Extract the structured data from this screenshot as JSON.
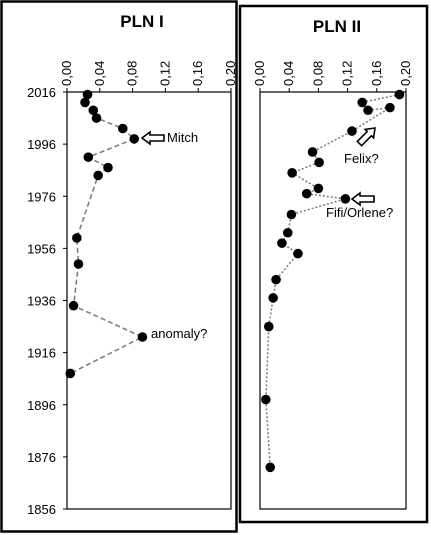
{
  "chart_data": [
    {
      "type": "scatter",
      "title": "PLN I",
      "x_ticks": [
        "0,00",
        "0,04",
        "0,08",
        "0,12",
        "0,16",
        "0,20"
      ],
      "y_ticks": [
        "2016",
        "1996",
        "1976",
        "1956",
        "1936",
        "1916",
        "1896",
        "1876",
        "1856"
      ],
      "xlim": [
        0,
        0.2
      ],
      "ylim": [
        1856,
        2016
      ],
      "x_axis_position": "top",
      "line_style": "dashed",
      "series": [
        {
          "values": [
            {
              "x": 0.025,
              "y": 2015
            },
            {
              "x": 0.022,
              "y": 2012
            },
            {
              "x": 0.032,
              "y": 2009
            },
            {
              "x": 0.036,
              "y": 2006
            },
            {
              "x": 0.068,
              "y": 2002
            },
            {
              "x": 0.082,
              "y": 1998
            },
            {
              "x": 0.026,
              "y": 1991
            },
            {
              "x": 0.05,
              "y": 1987
            },
            {
              "x": 0.038,
              "y": 1984
            },
            {
              "x": 0.012,
              "y": 1960
            },
            {
              "x": 0.014,
              "y": 1950
            },
            {
              "x": 0.008,
              "y": 1934
            },
            {
              "x": 0.092,
              "y": 1922
            },
            {
              "x": 0.004,
              "y": 1908
            }
          ]
        }
      ],
      "annotations": [
        {
          "text": "Mitch",
          "x": 0.082,
          "y": 1998,
          "arrow": true
        },
        {
          "text": "anomaly?",
          "x": 0.092,
          "y": 1922,
          "arrow": false
        }
      ]
    },
    {
      "type": "scatter",
      "title": "PLN II",
      "x_ticks": [
        "0,00",
        "0,04",
        "0,08",
        "0,12",
        "0,16",
        "0,20"
      ],
      "y_ticks": [],
      "xlim": [
        0,
        0.2
      ],
      "ylim": [
        1856,
        2016
      ],
      "x_axis_position": "top",
      "line_style": "dotted",
      "series": [
        {
          "values": [
            {
              "x": 0.191,
              "y": 2015
            },
            {
              "x": 0.14,
              "y": 2012
            },
            {
              "x": 0.148,
              "y": 2009
            },
            {
              "x": 0.178,
              "y": 2010
            },
            {
              "x": 0.126,
              "y": 2001
            },
            {
              "x": 0.072,
              "y": 1993
            },
            {
              "x": 0.081,
              "y": 1989
            },
            {
              "x": 0.044,
              "y": 1985
            },
            {
              "x": 0.08,
              "y": 1979
            },
            {
              "x": 0.064,
              "y": 1977
            },
            {
              "x": 0.117,
              "y": 1975
            },
            {
              "x": 0.043,
              "y": 1969
            },
            {
              "x": 0.038,
              "y": 1962
            },
            {
              "x": 0.03,
              "y": 1958
            },
            {
              "x": 0.052,
              "y": 1954
            },
            {
              "x": 0.022,
              "y": 1944
            },
            {
              "x": 0.018,
              "y": 1937
            },
            {
              "x": 0.012,
              "y": 1926
            },
            {
              "x": 0.008,
              "y": 1898
            },
            {
              "x": 0.014,
              "y": 1872
            }
          ]
        }
      ],
      "annotations": [
        {
          "text": "Felix?",
          "x": 0.081,
          "y": 1989,
          "arrow": false
        },
        {
          "text": "Fifi/Orlene?",
          "x": 0.117,
          "y": 1975,
          "arrow": true
        },
        {
          "text": "",
          "x": 0.178,
          "y": 2010,
          "arrow": true
        }
      ]
    }
  ]
}
